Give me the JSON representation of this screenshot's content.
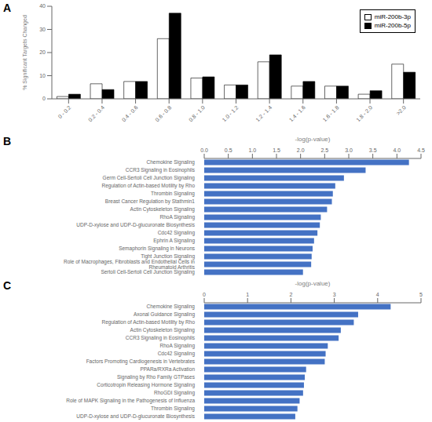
{
  "chart_data": [
    {
      "type": "bar",
      "title": "A",
      "categories": [
        "0 - 0.2",
        "0.2 - 0.4",
        "0.4 - 0.6",
        "0.6 - 0.8",
        "0.8 - 1.0",
        "1.0 - 1.2",
        "1.2 - 1.4",
        "1.4 - 1.6",
        "1.6 - 1.8",
        "1.8 - 2.0",
        ">2.0"
      ],
      "series": [
        {
          "name": "miR-200b-3p",
          "color": "white",
          "values": [
            1,
            6.5,
            7.5,
            26,
            9,
            6,
            16,
            5.5,
            5.5,
            2,
            15
          ]
        },
        {
          "name": "miR-200b-5p",
          "color": "black",
          "values": [
            2,
            4,
            7.5,
            37,
            9.5,
            6,
            19,
            7.5,
            5.5,
            3.5,
            11.5
          ]
        }
      ],
      "ylabel": "% Significant Targets Changed",
      "ylim": [
        0,
        40
      ],
      "yticks": [
        0,
        10,
        20,
        30,
        40
      ],
      "legend": "upper right",
      "grid": false
    },
    {
      "type": "bar",
      "title": "B",
      "orientation": "horizontal",
      "xlabel": "-log(p-value)",
      "categories": [
        "Chemokine Signaling",
        "CCR3 Signaling in Eosinophils",
        "Germ Cell-Sertoli Cell Junction Signaling",
        "Regulation of Actin-based Motility by Rho",
        "Thrombin Signaling",
        "Breast Cancer Regulation by Stathmin1",
        "Actin Cytoskeleton Signaling",
        "RhoA Signaling",
        "UDP-D-xylose and UDP-D-glucuronate Biosynthesis",
        "Cdc42 Signaling",
        "Ephrin A Signaling",
        "Semaphorin Signaling in Neurons",
        "Tight Junction Signaling",
        "Role of Macrophages, Fibroblasts and Endothelial Cells in Rheumatoid Arthritis",
        "Sertoli Cell-Sertoli Cell Junction Signaling"
      ],
      "values": [
        4.25,
        3.35,
        2.9,
        2.72,
        2.67,
        2.65,
        2.55,
        2.42,
        2.4,
        2.35,
        2.28,
        2.25,
        2.23,
        2.22,
        2.05
      ],
      "color": "#4472C4",
      "xlim": [
        0,
        4.5
      ],
      "xticks": [
        {
          "value": 0,
          "label": "0.0"
        },
        0.5,
        {
          "value": 1,
          "label": "1.0"
        },
        1.5,
        {
          "value": 2,
          "label": "2.0"
        },
        2.5,
        {
          "value": 3,
          "label": "3.0"
        },
        3.5,
        {
          "value": 4,
          "label": "4.0"
        },
        4.5
      ],
      "grid": false
    },
    {
      "type": "bar",
      "title": "C",
      "orientation": "horizontal",
      "xlabel": "-log(p-value)",
      "categories": [
        "Chemokine Signaling",
        "Axonal Guidance Signaling",
        "Regulation of Actin-based Motility by Rho",
        "Actin Cytoskeleton Signaling",
        "CCR3 Signaling in Eosinophils",
        "RhoA Signaling",
        "Cdc42 Signaling",
        "Factors Promoting Cardiogenesis in Vertebrates",
        "PPARa/RXRa Activation",
        "Signaling by Rho Family GTPases",
        "Corticotropin Releasing Hormone Signaling",
        "RhoGDI Signaling",
        "Role of MAPK Signaling in the Pathogenesis of Influenza",
        "Thrombin Signaling",
        "UDP-D-xylose and UDP-D-glucuronate Biosynthesis"
      ],
      "values": [
        4.3,
        3.55,
        3.45,
        3.15,
        3.1,
        2.85,
        2.8,
        2.78,
        2.35,
        2.32,
        2.3,
        2.28,
        2.2,
        2.15,
        2.1
      ],
      "color": "#4472C4",
      "xlim": [
        0,
        5
      ],
      "xticks": [
        0,
        1,
        2,
        3,
        4,
        5
      ],
      "grid": false
    }
  ]
}
